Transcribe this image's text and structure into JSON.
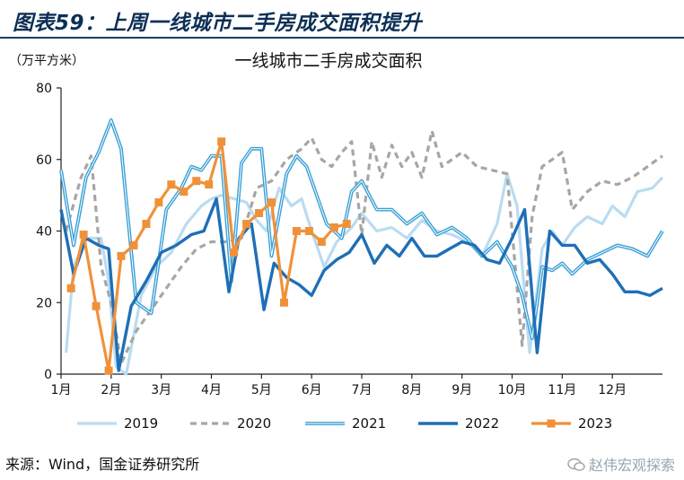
{
  "header": {
    "title": "图表59：上周一线城市二手房成交面积提升"
  },
  "footer": {
    "source": "来源：Wind，国金证券研究所",
    "watermark": "赵伟宏观探索"
  },
  "colors": {
    "title": "#0c2f55",
    "rule": "#1b3d63",
    "s2019": "#b9dcf2",
    "s2020": "#a6a6a6",
    "s2021": "#3aa0d6",
    "s2022": "#1f6fb6",
    "s2023": "#f0913a"
  },
  "chart_data": {
    "type": "line",
    "title": "一线城市二手房成交面积",
    "unit_label": "（万平方米）",
    "ylim": [
      0,
      80
    ],
    "yticks": [
      0,
      20,
      40,
      60,
      80
    ],
    "xlim": [
      1,
      13
    ],
    "xticks": [
      {
        "x": 1,
        "label": "1月"
      },
      {
        "x": 2,
        "label": "2月"
      },
      {
        "x": 3,
        "label": "3月"
      },
      {
        "x": 4,
        "label": "4月"
      },
      {
        "x": 5,
        "label": "5月"
      },
      {
        "x": 6,
        "label": "6月"
      },
      {
        "x": 7,
        "label": "7月"
      },
      {
        "x": 8,
        "label": "8月"
      },
      {
        "x": 9,
        "label": "9月"
      },
      {
        "x": 10,
        "label": "10月"
      },
      {
        "x": 11,
        "label": "11月"
      },
      {
        "x": 12,
        "label": "12月"
      }
    ],
    "legend_position": "bottom",
    "series": [
      {
        "name": "2019",
        "color": "#b9dcf2",
        "dash": "",
        "width": 3.2,
        "double": false,
        "markers": false,
        "x": [
          1.1,
          1.25,
          1.5,
          1.8,
          1.95,
          2.1,
          2.3,
          2.6,
          2.9,
          3.2,
          3.5,
          3.8,
          4.0,
          4.2,
          4.45,
          4.7,
          4.9,
          5.1,
          5.35,
          5.6,
          5.8,
          6.0,
          6.25,
          6.5,
          6.8,
          7.0,
          7.3,
          7.6,
          7.9,
          8.2,
          8.5,
          8.8,
          9.1,
          9.4,
          9.7,
          9.9,
          10.1,
          10.35,
          10.6,
          10.8,
          11.0,
          11.25,
          11.5,
          11.8,
          12.0,
          12.25,
          12.5,
          12.8,
          13.0
        ],
        "y": [
          6,
          30,
          38,
          38,
          26,
          2,
          0,
          22,
          30,
          34,
          42,
          47,
          49,
          50,
          49,
          48,
          43,
          40,
          52,
          47,
          49,
          40,
          30,
          37,
          41,
          45,
          40,
          41,
          38,
          43,
          40,
          39,
          37,
          33,
          42,
          56,
          47,
          6,
          35,
          40,
          36,
          41,
          44,
          42,
          47,
          44,
          51,
          52,
          55
        ]
      },
      {
        "name": "2020",
        "color": "#a6a6a6",
        "dash": "7,5",
        "width": 3.2,
        "double": false,
        "markers": false,
        "x": [
          1.1,
          1.4,
          1.6,
          1.8,
          2.0,
          2.2,
          2.5,
          2.8,
          3.1,
          3.4,
          3.7,
          4.0,
          4.3,
          4.6,
          4.9,
          5.2,
          5.5,
          5.8,
          6.0,
          6.2,
          6.4,
          6.6,
          6.8,
          7.0,
          7.2,
          7.4,
          7.6,
          7.8,
          8.0,
          8.2,
          8.4,
          8.6,
          8.8,
          9.0,
          9.3,
          9.6,
          9.9,
          10.2,
          10.4,
          10.6,
          10.8,
          11.0,
          11.2,
          11.5,
          11.8,
          12.1,
          12.4,
          12.7,
          13.0
        ],
        "y": [
          40,
          55,
          61,
          30,
          20,
          3,
          12,
          18,
          24,
          30,
          35,
          37,
          37,
          38,
          52,
          54,
          60,
          63,
          66,
          60,
          58,
          62,
          65,
          39,
          65,
          55,
          64,
          58,
          62,
          55,
          68,
          58,
          60,
          62,
          58,
          57,
          56,
          8,
          44,
          58,
          60,
          62,
          46,
          51,
          54,
          53,
          55,
          58,
          61
        ]
      },
      {
        "name": "2021",
        "color": "#3aa0d6",
        "dash": "",
        "width": 2.6,
        "double": true,
        "markers": false,
        "x": [
          1.0,
          1.25,
          1.5,
          1.75,
          2.0,
          2.2,
          2.5,
          2.8,
          3.1,
          3.4,
          3.6,
          3.8,
          4.0,
          4.2,
          4.4,
          4.6,
          4.8,
          5.0,
          5.2,
          5.5,
          5.7,
          5.9,
          6.1,
          6.3,
          6.6,
          6.8,
          7.0,
          7.3,
          7.6,
          7.9,
          8.2,
          8.5,
          8.8,
          9.1,
          9.4,
          9.7,
          10.0,
          10.2,
          10.4,
          10.6,
          10.8,
          11.0,
          11.2,
          11.5,
          11.8,
          12.1,
          12.4,
          12.7,
          13.0
        ],
        "y": [
          57,
          36,
          55,
          62,
          71,
          63,
          20,
          17,
          46,
          52,
          58,
          57,
          61,
          61,
          26,
          59,
          63,
          63,
          33,
          56,
          61,
          58,
          50,
          42,
          38,
          51,
          54,
          46,
          46,
          42,
          45,
          39,
          41,
          38,
          33,
          37,
          30,
          22,
          10,
          30,
          29,
          31,
          28,
          32,
          34,
          36,
          35,
          33,
          40
        ]
      },
      {
        "name": "2022",
        "color": "#1f6fb6",
        "dash": "",
        "width": 3.4,
        "double": false,
        "markers": false,
        "x": [
          1.0,
          1.25,
          1.5,
          1.75,
          1.95,
          2.15,
          2.4,
          2.7,
          3.0,
          3.3,
          3.6,
          3.85,
          4.1,
          4.35,
          4.55,
          4.8,
          5.05,
          5.25,
          5.5,
          5.75,
          6.0,
          6.25,
          6.5,
          6.75,
          7.0,
          7.25,
          7.5,
          7.75,
          8.0,
          8.25,
          8.5,
          8.75,
          9.0,
          9.25,
          9.5,
          9.75,
          10.0,
          10.25,
          10.5,
          10.75,
          11.0,
          11.25,
          11.5,
          11.75,
          12.0,
          12.25,
          12.5,
          12.75,
          13.0
        ],
        "y": [
          46,
          28,
          38,
          36,
          35,
          1,
          19,
          26,
          34,
          36,
          39,
          40,
          49,
          23,
          38,
          42,
          18,
          31,
          27,
          25,
          22,
          29,
          32,
          34,
          39,
          31,
          36,
          33,
          38,
          33,
          33,
          35,
          37,
          36,
          32,
          31,
          38,
          46,
          6,
          40,
          36,
          36,
          31,
          32,
          28,
          23,
          23,
          22,
          24
        ]
      },
      {
        "name": "2023",
        "color": "#f0913a",
        "dash": "",
        "width": 3.2,
        "double": false,
        "markers": true,
        "x": [
          1.2,
          1.45,
          1.7,
          1.95,
          2.2,
          2.45,
          2.7,
          2.95,
          3.2,
          3.45,
          3.7,
          3.95,
          4.2,
          4.45,
          4.7,
          4.95,
          5.2,
          5.45,
          5.7,
          5.95,
          6.2,
          6.45,
          6.7
        ],
        "y": [
          24,
          39,
          19,
          1,
          33,
          36,
          42,
          48,
          53,
          51,
          54,
          53,
          65,
          34,
          42,
          45,
          48,
          20,
          40,
          40,
          37,
          41,
          42
        ]
      }
    ]
  }
}
